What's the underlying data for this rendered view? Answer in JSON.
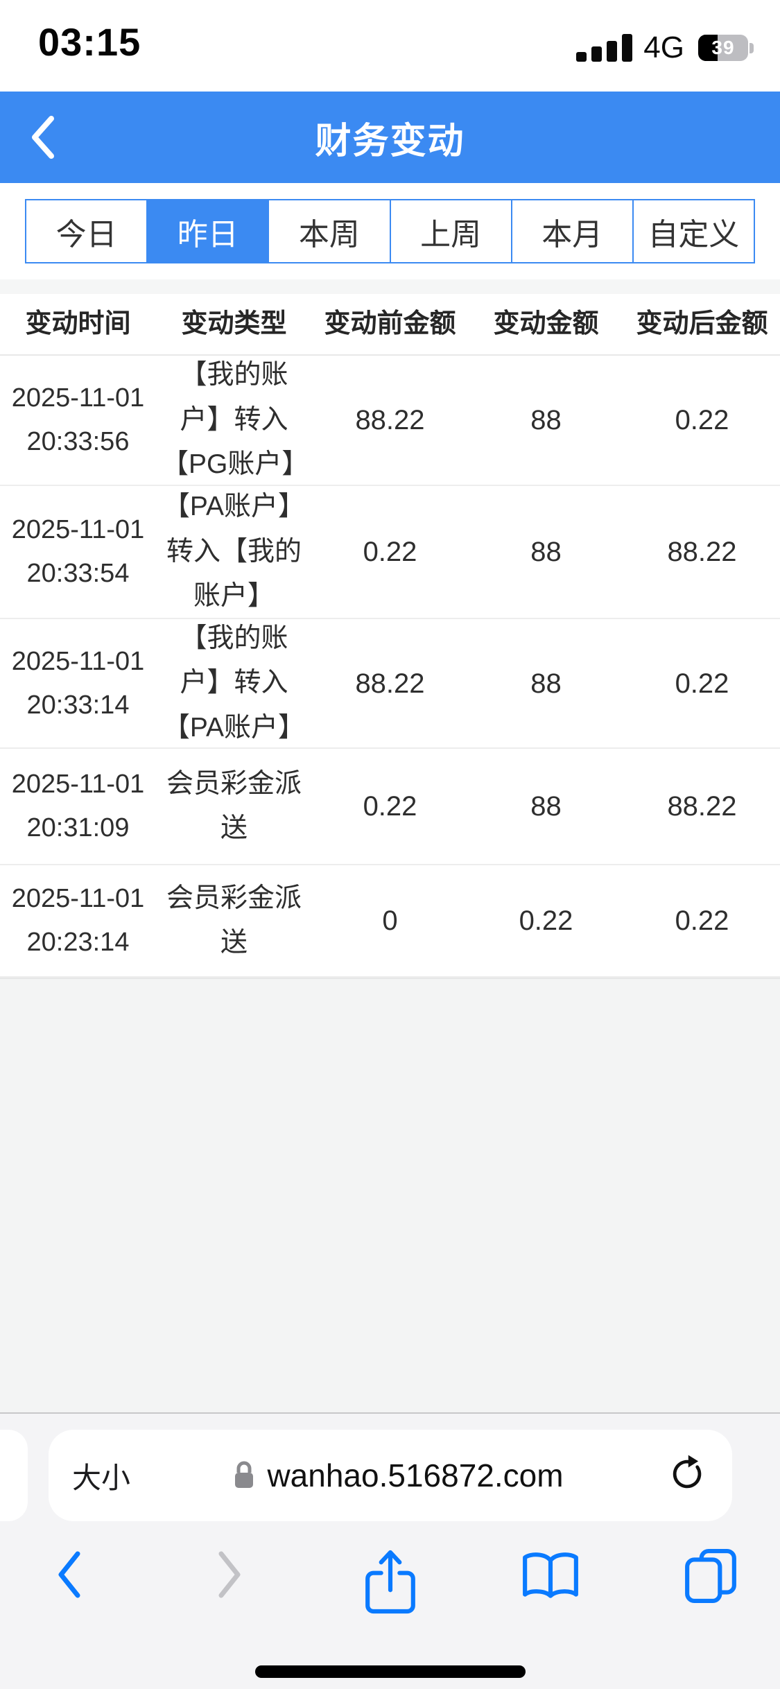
{
  "colors": {
    "accent": "#3b8af2",
    "iosBlue": "#0a7aff",
    "disabled": "#c2c2c6"
  },
  "status_bar": {
    "time": "03:15",
    "network": "4G",
    "battery_percent": "39"
  },
  "nav": {
    "title": "财务变动"
  },
  "filters": {
    "items": [
      {
        "label": "今日",
        "selected": false
      },
      {
        "label": "昨日",
        "selected": true
      },
      {
        "label": "本周",
        "selected": false
      },
      {
        "label": "上周",
        "selected": false
      },
      {
        "label": "本月",
        "selected": false
      },
      {
        "label": "自定义",
        "selected": false
      }
    ]
  },
  "table": {
    "headers": [
      "变动时间",
      "变动类型",
      "变动前金额",
      "变动金额",
      "变动后金额"
    ],
    "rows": [
      {
        "date": "2025-11-01",
        "time": "20:33:56",
        "type": "【我的账户】转入【PG账户】",
        "before": "88.22",
        "amount": "88",
        "after": "0.22"
      },
      {
        "date": "2025-11-01",
        "time": "20:33:54",
        "type": "【PA账户】转入【我的账户】",
        "before": "0.22",
        "amount": "88",
        "after": "88.22"
      },
      {
        "date": "2025-11-01",
        "time": "20:33:14",
        "type": "【我的账户】转入【PA账户】",
        "before": "88.22",
        "amount": "88",
        "after": "0.22"
      },
      {
        "date": "2025-11-01",
        "time": "20:31:09",
        "type": "会员彩金派送",
        "before": "0.22",
        "amount": "88",
        "after": "88.22"
      },
      {
        "date": "2025-11-01",
        "time": "20:23:14",
        "type": "会员彩金派送",
        "before": "0",
        "amount": "0.22",
        "after": "0.22"
      }
    ]
  },
  "browser": {
    "text_size_label": "大小",
    "url": "wanhao.516872.com"
  }
}
